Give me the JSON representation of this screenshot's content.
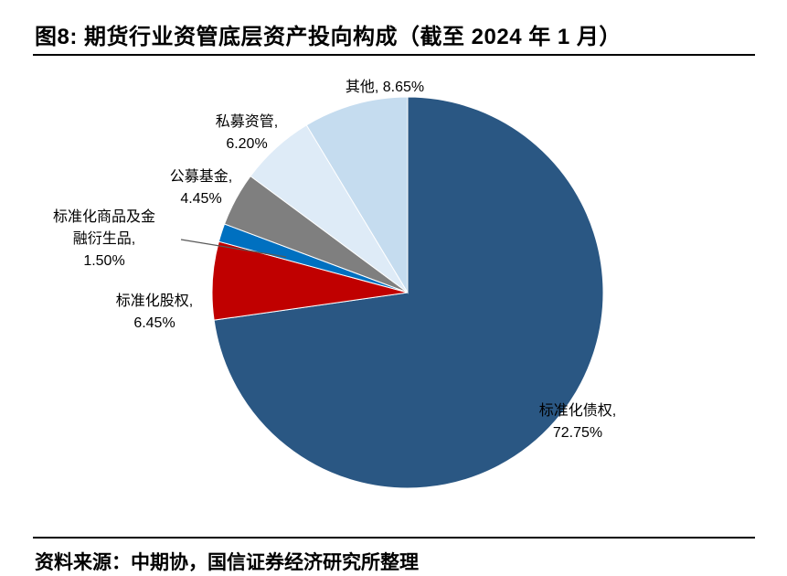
{
  "header": {
    "title": "图8: 期货行业资管底层资产投向构成（截至 2024 年 1 月）"
  },
  "footer": {
    "source": "资料来源：中期协，国信证券经济研究所整理"
  },
  "chart_data": {
    "type": "pie",
    "title": "期货行业资管底层资产投向构成",
    "as_of_label": "截至 2024 年 1 月",
    "direction": "clockwise",
    "start_angle_deg": 0,
    "legend_position": "none",
    "unit": "%",
    "slices": [
      {
        "key": "debt",
        "label": "标准化债权",
        "value": 72.75,
        "color": "#2A5783",
        "display": "标准化债权,\n72.75%"
      },
      {
        "key": "equity",
        "label": "标准化股权",
        "value": 6.45,
        "color": "#C00000",
        "display": "标准化股权,\n6.45%"
      },
      {
        "key": "commodity",
        "label": "标准化商品及金融衍生品",
        "value": 1.5,
        "color": "#0070C0",
        "display": "标准化商品及金\n融衍生品,\n1.50%"
      },
      {
        "key": "publicfund",
        "label": "公募基金",
        "value": 4.45,
        "color": "#7F7F7F",
        "display": "公募基金,\n4.45%"
      },
      {
        "key": "private",
        "label": "私募资管",
        "value": 6.2,
        "color": "#DEEBF7",
        "display": "私募资管,\n6.20%"
      },
      {
        "key": "other",
        "label": "其他",
        "value": 8.65,
        "color": "#C5DCEF",
        "display": "其他,  8.65%"
      }
    ]
  }
}
